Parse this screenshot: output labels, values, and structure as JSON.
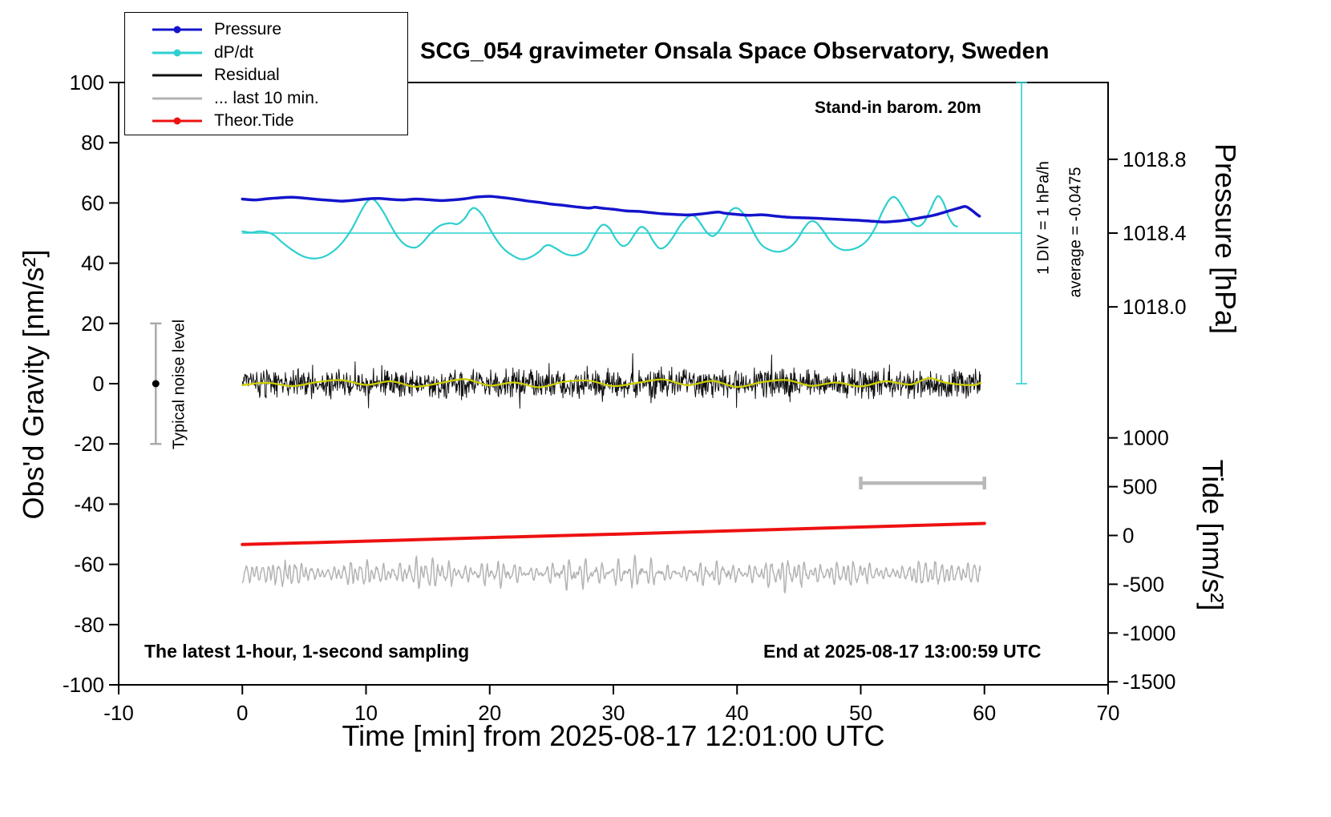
{
  "title": "SCG_054 gravimeter Onsala Space Observatory, Sweden",
  "annotations": {
    "barometer": "Stand-in barom. 20m",
    "div_scale": "1 DIV = 1 hPa/h",
    "average": "average = -0.0475",
    "noise_level": "Typical noise level",
    "sampling": "The latest 1-hour, 1-second sampling",
    "end_time": "End at 2025-08-17 13:00:59 UTC"
  },
  "legend": {
    "items": [
      {
        "label": "Pressure",
        "color": "#1414cc",
        "marker": true
      },
      {
        "label": "dP/dt",
        "color": "#2ecfcf",
        "marker": true
      },
      {
        "label": "Residual",
        "color": "#111111",
        "marker": false
      },
      {
        "label": "... last 10 min.",
        "color": "#b3b3b3",
        "marker": false
      },
      {
        "label": "Theor.Tide",
        "color": "#ee1111",
        "marker": true
      }
    ]
  },
  "axes": {
    "x": {
      "label": "Time [min] from 2025-08-17 12:01:00 UTC",
      "min": -10,
      "max": 70,
      "ticks": [
        -10,
        0,
        10,
        20,
        30,
        40,
        50,
        60,
        70
      ]
    },
    "y_left": {
      "label": "Obs'd Gravity [nm/s²]",
      "min": -100,
      "max": 100,
      "ticks": [
        100,
        80,
        60,
        40,
        20,
        0,
        -20,
        -40,
        -60,
        -80,
        -100
      ]
    },
    "y_pressure": {
      "label": "Pressure [hPa]",
      "tick_labels": [
        "1018.8",
        "1018.4",
        "1018.0"
      ],
      "tick_values": [
        1018.8,
        1018.4,
        1018.0
      ],
      "ref_value": 1018.4,
      "ref_y": 50,
      "units_per_hpa": 61.25
    },
    "y_tide": {
      "label": "Tide [nm/s²]",
      "tick_values": [
        1000,
        500,
        0,
        -500,
        -1000,
        -1500
      ],
      "zero_y": -50.4,
      "units_per_tide": 0.0324
    }
  },
  "chart_data": {
    "type": "line",
    "title": "SCG_054 gravimeter Onsala Space Observatory, Sweden",
    "xlabel": "Time [min] from 2025-08-17 12:01:00 UTC",
    "ylabel_left": "Obs'd Gravity [nm/s²]",
    "x_range": [
      -10,
      70
    ],
    "y_left_range": [
      -100,
      100
    ],
    "grid": false,
    "legend_position": "top-left",
    "series": [
      {
        "name": "last-10-min",
        "color": "#b3b3b3",
        "width": 1.5,
        "type": "microseism",
        "mean": -63,
        "amplitude": 3.2,
        "x_start": 0,
        "x_end": 59.7,
        "seed": 777
      },
      {
        "name": "Residual",
        "color": "#111111",
        "width": 1,
        "type": "noise",
        "mean": 0,
        "amplitude": 9,
        "x_start": 0,
        "x_end": 59.7,
        "step": 0.04,
        "seed": 20250817
      },
      {
        "name": "Residual-smoothed",
        "color": "#cfcf00",
        "width": 2.2,
        "type": "smooth",
        "points": [
          [
            0,
            -0.5
          ],
          [
            2,
            0.3
          ],
          [
            4,
            -0.8
          ],
          [
            6,
            0.5
          ],
          [
            8,
            1.2
          ],
          [
            10,
            -0.4
          ],
          [
            12,
            0.8
          ],
          [
            14,
            -1.0
          ],
          [
            16,
            0.2
          ],
          [
            18,
            1.5
          ],
          [
            20,
            -0.6
          ],
          [
            22,
            0.4
          ],
          [
            24,
            -1.2
          ],
          [
            26,
            0.6
          ],
          [
            28,
            1.0
          ],
          [
            30,
            -0.8
          ],
          [
            32,
            0.3
          ],
          [
            34,
            1.4
          ],
          [
            36,
            -0.5
          ],
          [
            38,
            0.9
          ],
          [
            40,
            -1.1
          ],
          [
            42,
            0.5
          ],
          [
            44,
            1.2
          ],
          [
            46,
            -0.7
          ],
          [
            48,
            0.4
          ],
          [
            50,
            -0.9
          ],
          [
            52,
            0.8
          ],
          [
            54,
            -0.3
          ],
          [
            55.5,
            1.8
          ],
          [
            57,
            0.2
          ],
          [
            59,
            -0.5
          ],
          [
            59.7,
            0.3
          ]
        ]
      },
      {
        "name": "dPdt-zero-line",
        "color": "#2ecfcf",
        "width": 1.5,
        "type": "line",
        "points": [
          [
            0,
            50
          ],
          [
            63,
            50
          ]
        ]
      },
      {
        "name": "dP/dt",
        "color": "#2ecfcf",
        "width": 2.2,
        "type": "smooth",
        "points": [
          [
            0,
            50.6
          ],
          [
            0.7,
            50.2
          ],
          [
            1.4,
            50.6
          ],
          [
            2,
            50.3
          ],
          [
            2.6,
            49.2
          ],
          [
            3.2,
            47.0
          ],
          [
            4,
            44.5
          ],
          [
            4.8,
            42.5
          ],
          [
            5.6,
            41.6
          ],
          [
            6.4,
            41.9
          ],
          [
            7.2,
            43.5
          ],
          [
            8,
            46.5
          ],
          [
            8.8,
            51.0
          ],
          [
            9.5,
            56.5
          ],
          [
            10,
            60.0
          ],
          [
            10.4,
            61.3
          ],
          [
            10.8,
            60.5
          ],
          [
            11.4,
            57.0
          ],
          [
            12,
            52.5
          ],
          [
            12.6,
            48.5
          ],
          [
            13.2,
            46.0
          ],
          [
            14,
            45.2
          ],
          [
            14.6,
            47.0
          ],
          [
            15.2,
            49.8
          ],
          [
            16,
            52.5
          ],
          [
            16.8,
            53.3
          ],
          [
            17.4,
            53.0
          ],
          [
            18,
            55.0
          ],
          [
            18.4,
            57.5
          ],
          [
            18.8,
            58.3
          ],
          [
            19.4,
            56.0
          ],
          [
            20,
            51.5
          ],
          [
            20.6,
            47.5
          ],
          [
            21.2,
            44.5
          ],
          [
            22,
            42.2
          ],
          [
            22.6,
            41.3
          ],
          [
            23.2,
            41.8
          ],
          [
            24,
            43.8
          ],
          [
            24.4,
            45.5
          ],
          [
            24.8,
            46.0
          ],
          [
            25.4,
            44.8
          ],
          [
            26,
            43.3
          ],
          [
            26.6,
            42.6
          ],
          [
            27.2,
            42.9
          ],
          [
            27.8,
            44.5
          ],
          [
            28.3,
            48.0
          ],
          [
            28.8,
            51.5
          ],
          [
            29.2,
            52.8
          ],
          [
            29.7,
            51.5
          ],
          [
            30.2,
            48.0
          ],
          [
            30.7,
            45.8
          ],
          [
            31.2,
            46.5
          ],
          [
            31.7,
            49.5
          ],
          [
            32.2,
            52.0
          ],
          [
            32.7,
            51.0
          ],
          [
            33.2,
            47.5
          ],
          [
            33.7,
            45.0
          ],
          [
            34.2,
            45.5
          ],
          [
            34.8,
            48.5
          ],
          [
            35.4,
            52.5
          ],
          [
            36,
            55.3
          ],
          [
            36.5,
            55.8
          ],
          [
            37,
            53.5
          ],
          [
            37.5,
            50.5
          ],
          [
            38,
            49.0
          ],
          [
            38.5,
            50.5
          ],
          [
            39,
            54.0
          ],
          [
            39.5,
            57.5
          ],
          [
            40,
            58.3
          ],
          [
            40.5,
            56.5
          ],
          [
            41,
            53.0
          ],
          [
            41.5,
            49.0
          ],
          [
            42,
            46.0
          ],
          [
            42.7,
            44.3
          ],
          [
            43.4,
            43.8
          ],
          [
            44.1,
            44.8
          ],
          [
            44.8,
            47.5
          ],
          [
            45.4,
            51.5
          ],
          [
            45.9,
            53.8
          ],
          [
            46.4,
            53.5
          ],
          [
            47,
            50.5
          ],
          [
            47.5,
            47.5
          ],
          [
            48,
            45.5
          ],
          [
            48.6,
            44.4
          ],
          [
            49.3,
            44.6
          ],
          [
            50,
            45.8
          ],
          [
            50.6,
            48.0
          ],
          [
            51.2,
            52.0
          ],
          [
            51.8,
            57.5
          ],
          [
            52.3,
            61.0
          ],
          [
            52.7,
            62.0
          ],
          [
            53.1,
            60.5
          ],
          [
            53.6,
            57.0
          ],
          [
            54.1,
            53.8
          ],
          [
            54.6,
            52.3
          ],
          [
            55.1,
            53.5
          ],
          [
            55.6,
            57.5
          ],
          [
            56,
            61.0
          ],
          [
            56.3,
            62.3
          ],
          [
            56.7,
            60.0
          ],
          [
            57.1,
            55.5
          ],
          [
            57.5,
            52.8
          ],
          [
            57.8,
            52.2
          ]
        ]
      },
      {
        "name": "Pressure",
        "color": "#1414cc",
        "width": 3.5,
        "type": "smooth",
        "points": [
          [
            0,
            61.3
          ],
          [
            1,
            61.0
          ],
          [
            2,
            61.4
          ],
          [
            3,
            61.7
          ],
          [
            4,
            61.9
          ],
          [
            5,
            61.6
          ],
          [
            6,
            61.2
          ],
          [
            7,
            60.9
          ],
          [
            8,
            60.6
          ],
          [
            9,
            60.9
          ],
          [
            10,
            61.3
          ],
          [
            11,
            61.5
          ],
          [
            12,
            61.2
          ],
          [
            13,
            61.0
          ],
          [
            14,
            61.3
          ],
          [
            15,
            61.1
          ],
          [
            16,
            60.8
          ],
          [
            17,
            61.0
          ],
          [
            18,
            61.4
          ],
          [
            19,
            62.0
          ],
          [
            20,
            62.2
          ],
          [
            21,
            61.8
          ],
          [
            22,
            61.3
          ],
          [
            23,
            60.7
          ],
          [
            24,
            60.2
          ],
          [
            25,
            59.6
          ],
          [
            26,
            59.2
          ],
          [
            27,
            58.7
          ],
          [
            28,
            58.3
          ],
          [
            28.5,
            58.6
          ],
          [
            29,
            58.3
          ],
          [
            30,
            57.9
          ],
          [
            31,
            57.4
          ],
          [
            32,
            57.2
          ],
          [
            33,
            56.8
          ],
          [
            34,
            56.4
          ],
          [
            35,
            56.2
          ],
          [
            36,
            56.0
          ],
          [
            37,
            56.3
          ],
          [
            38,
            56.8
          ],
          [
            38.5,
            57.0
          ],
          [
            39,
            56.6
          ],
          [
            40,
            56.2
          ],
          [
            41,
            55.9
          ],
          [
            42,
            56.1
          ],
          [
            43,
            55.7
          ],
          [
            44,
            55.3
          ],
          [
            45,
            55.1
          ],
          [
            46,
            55.0
          ],
          [
            47,
            54.8
          ],
          [
            48,
            54.6
          ],
          [
            49,
            54.4
          ],
          [
            50,
            54.2
          ],
          [
            51,
            53.9
          ],
          [
            52,
            53.7
          ],
          [
            53,
            54.0
          ],
          [
            54,
            54.5
          ],
          [
            55,
            55.2
          ],
          [
            56,
            56.0
          ],
          [
            56.5,
            56.6
          ],
          [
            57,
            57.2
          ],
          [
            57.5,
            57.8
          ],
          [
            58,
            58.4
          ],
          [
            58.5,
            58.8
          ],
          [
            59,
            57.5
          ],
          [
            59.3,
            56.5
          ],
          [
            59.6,
            55.6
          ]
        ]
      },
      {
        "name": "Theor.Tide",
        "color": "#ee1111",
        "width": 4,
        "type": "smooth",
        "points": [
          [
            0,
            -53.4
          ],
          [
            10,
            -52.3
          ],
          [
            20,
            -51.1
          ],
          [
            30,
            -50.0
          ],
          [
            40,
            -48.8
          ],
          [
            50,
            -47.6
          ],
          [
            60,
            -46.4
          ]
        ]
      }
    ],
    "shapes": {
      "noise_error_bar": {
        "x": -7,
        "y_low": -20,
        "y_high": 20,
        "dot_y": 0,
        "bar_color": "#aaaaaa",
        "dot_color": "#000000"
      },
      "last10_scale_bar": {
        "x0": 50,
        "x1": 60,
        "y": -33,
        "color": "#b9b9b9"
      },
      "div_indicator": {
        "x": 63,
        "y0": 0,
        "y1": 100,
        "color": "#2ecfcf"
      }
    }
  }
}
